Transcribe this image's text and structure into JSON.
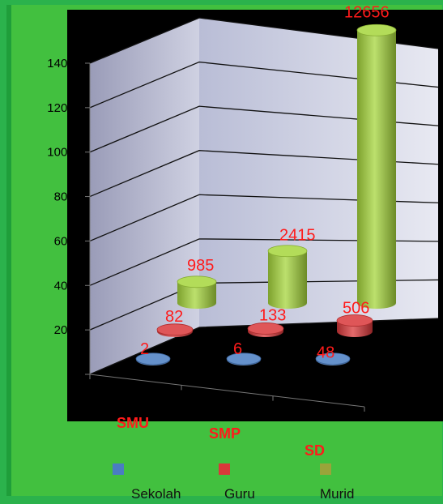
{
  "chart_data": {
    "type": "bar",
    "style": "3d-cylinder",
    "categories": [
      "SMU",
      "SMP",
      "SD"
    ],
    "series": [
      {
        "name": "Sekolah",
        "values": [
          2,
          6,
          48
        ],
        "color": "#4a7dc2"
      },
      {
        "name": "Guru",
        "values": [
          82,
          133,
          506
        ],
        "color": "#d9383a"
      },
      {
        "name": "Murid",
        "values": [
          985,
          2415,
          12656
        ],
        "color": "#a6d63c"
      }
    ],
    "ylim": [
      0,
      14000
    ],
    "yticks": [
      0,
      2000,
      4000,
      6000,
      8000,
      10000,
      12000,
      14000
    ],
    "grid": true,
    "legend_position": "bottom"
  }
}
